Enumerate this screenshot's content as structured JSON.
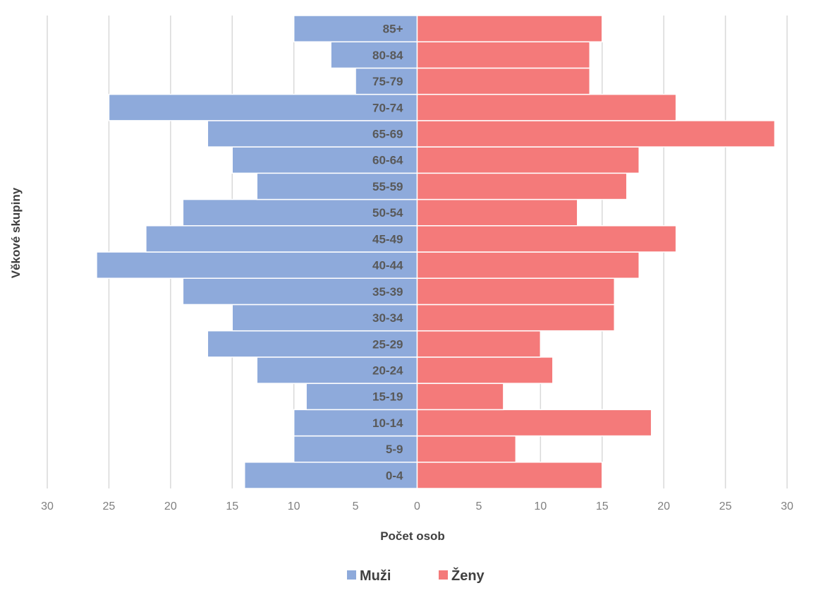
{
  "chart_data": {
    "type": "bar",
    "orientation": "horizontal",
    "subtype": "population-pyramid",
    "title": "",
    "xlabel": "Počet osob",
    "ylabel": "Věkové skupiny",
    "categories": [
      "0-4",
      "5-9",
      "10-14",
      "15-19",
      "20-24",
      "25-29",
      "30-34",
      "35-39",
      "40-44",
      "45-49",
      "50-54",
      "55-59",
      "60-64",
      "65-69",
      "70-74",
      "75-79",
      "80-84",
      "85+"
    ],
    "series": [
      {
        "name": "Muži",
        "color": "#8eaadb",
        "side": "left",
        "values": [
          14,
          10,
          10,
          9,
          13,
          17,
          15,
          19,
          26,
          22,
          19,
          13,
          15,
          17,
          25,
          5,
          7,
          10
        ]
      },
      {
        "name": "Ženy",
        "color": "#f47a7a",
        "side": "right",
        "values": [
          15,
          8,
          19,
          7,
          11,
          10,
          16,
          16,
          18,
          21,
          13,
          17,
          18,
          29,
          21,
          14,
          14,
          15
        ]
      }
    ],
    "xlim": [
      -30,
      30
    ],
    "x_ticks": [
      -30,
      -25,
      -20,
      -15,
      -10,
      -5,
      0,
      5,
      10,
      15,
      20,
      25,
      30
    ],
    "x_tick_labels": [
      "30",
      "25",
      "20",
      "15",
      "10",
      "5",
      "0",
      "5",
      "10",
      "15",
      "20",
      "25",
      "30"
    ],
    "grid": true,
    "legend_position": "bottom"
  }
}
